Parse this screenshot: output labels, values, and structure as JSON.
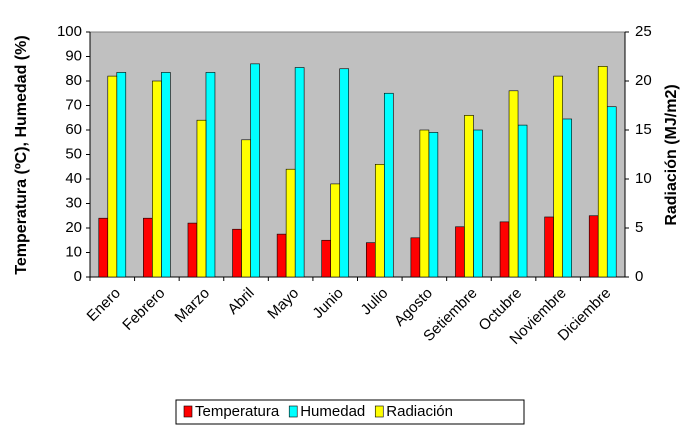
{
  "chart_data": {
    "type": "bar",
    "categories": [
      "Enero",
      "Febrero",
      "Marzo",
      "Abril",
      "Mayo",
      "Junio",
      "Julio",
      "Agosto",
      "Setiembre",
      "Octubre",
      "Noviembre",
      "Diciembre"
    ],
    "y_label": "Temperatura (ºC), Humedad (%)",
    "y2_label": "Radiación (MJ/m2)",
    "series": [
      {
        "name": "Temperatura",
        "color": "#ff0000",
        "values": [
          24,
          24,
          22,
          19.5,
          17.5,
          15,
          14,
          16,
          20.5,
          22.5,
          24.5,
          25
        ]
      },
      {
        "name": "Humedad",
        "color": "#00ffff",
        "values": [
          83.5,
          83.5,
          83.5,
          87,
          85.5,
          85,
          75,
          59,
          60,
          62,
          64.5,
          69.5
        ]
      },
      {
        "name": "Radiación",
        "color": "#ffff00",
        "axis": "y2",
        "values": [
          20.5,
          20,
          16,
          14,
          11,
          9.5,
          11.5,
          15,
          16.5,
          19,
          20.5,
          21.5
        ]
      }
    ],
    "ylim": [
      0,
      100
    ],
    "yticks": [
      0,
      10,
      20,
      30,
      40,
      50,
      60,
      70,
      80,
      90,
      100
    ],
    "y2lim": [
      0,
      25
    ],
    "y2ticks": [
      0,
      5,
      10,
      15,
      20,
      25
    ],
    "grid": false
  }
}
